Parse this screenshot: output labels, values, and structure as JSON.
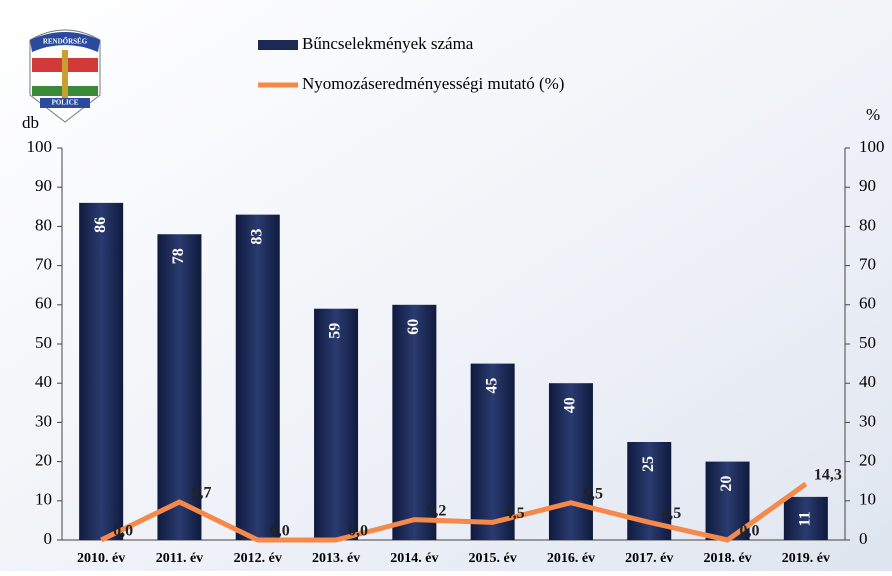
{
  "logo": {
    "top": "RENDŐRSÉG",
    "bottom": "POLICE"
  },
  "chart_data": {
    "type": "bar",
    "categories": [
      "2010. év",
      "2011. év",
      "2012. év",
      "2013. év",
      "2014. év",
      "2015. év",
      "2016. év",
      "2017. év",
      "2018. év",
      "2019. év"
    ],
    "series": [
      {
        "name": "Bűncselekmények száma",
        "type": "bar",
        "color": "#1b2a55",
        "values": [
          86,
          78,
          83,
          59,
          60,
          45,
          40,
          25,
          20,
          11
        ]
      },
      {
        "name": "Nyomozáseredményességi mutató (%)",
        "type": "line",
        "axis": "y2",
        "color": "#f4894a",
        "values": [
          0.0,
          9.7,
          0.0,
          0.0,
          5.2,
          4.5,
          9.5,
          4.5,
          0.0,
          14.3
        ],
        "value_labels": [
          "0,0",
          "9,7",
          "0,0",
          "0,0",
          "5,2",
          "4,5",
          "9,5",
          "4,5",
          "0,0",
          "14,3"
        ]
      }
    ],
    "ylabel": "db",
    "y2label": "%",
    "ylim": [
      0,
      100
    ],
    "yticks": [
      0,
      10,
      20,
      30,
      40,
      50,
      60,
      70,
      80,
      90,
      100
    ],
    "y2lim": [
      0,
      100
    ],
    "y2ticks": [
      0,
      10,
      20,
      30,
      40,
      50,
      60,
      70,
      80,
      90,
      100
    ]
  }
}
